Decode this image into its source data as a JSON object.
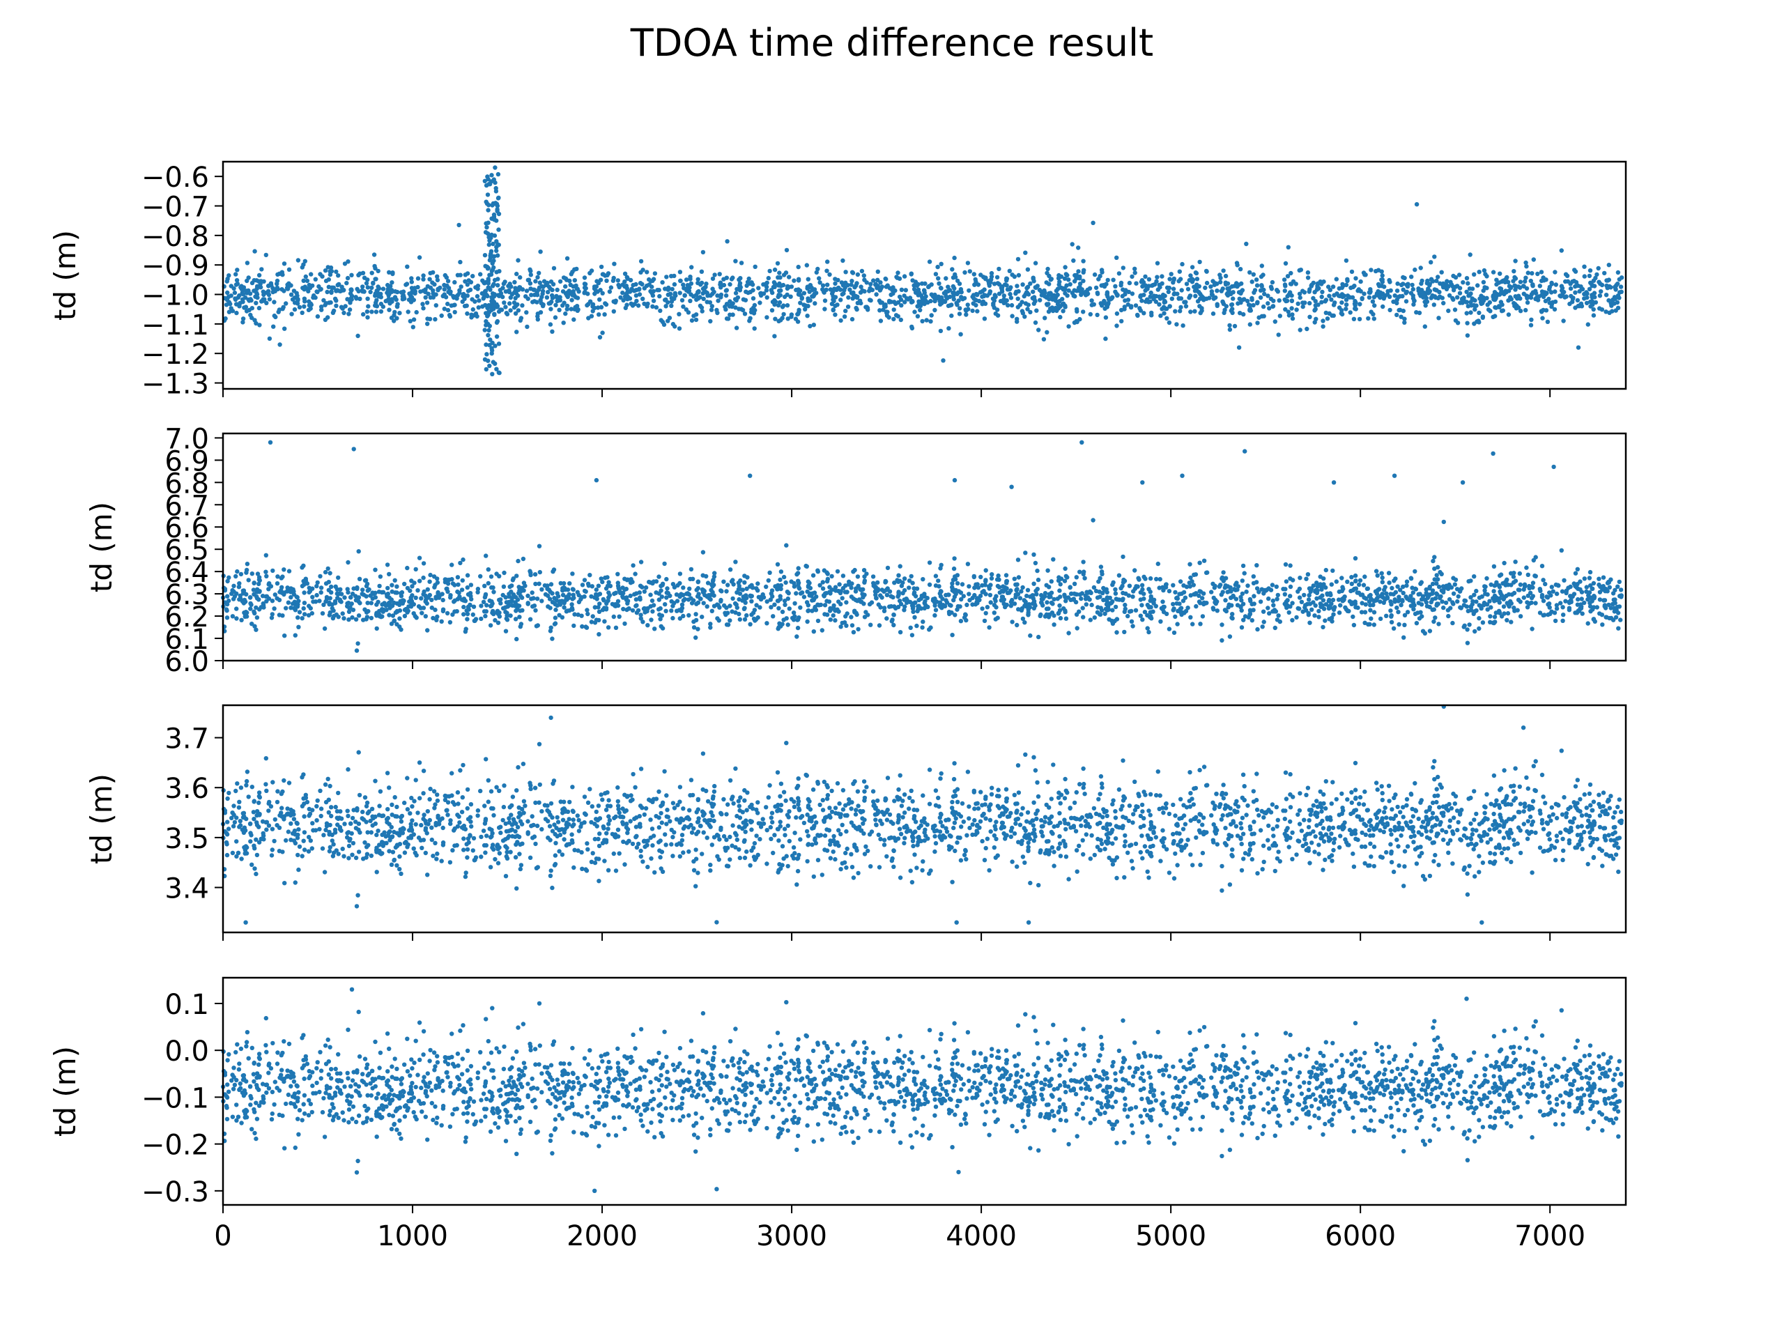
{
  "figure": {
    "title": "TDOA time difference result",
    "point_color": "#1f77b4"
  },
  "chart_data": [
    {
      "type": "scatter",
      "ylabel": "td (m)",
      "xlim": [
        0,
        7400
      ],
      "ylim": [
        -1.32,
        -0.55
      ],
      "yticks": [
        -0.6,
        -0.7,
        -0.8,
        -0.9,
        -1.0,
        -1.1,
        -1.2,
        -1.3
      ],
      "ytick_labels": [
        "−0.6",
        "−0.7",
        "−0.8",
        "−0.9",
        "−1.0",
        "−1.1",
        "−1.2",
        "−1.3"
      ],
      "x_range": [
        0,
        7380
      ],
      "baseline": -1.0,
      "spread": 0.045,
      "event": {
        "x_from": 1380,
        "x_to": 1460,
        "min": -1.27,
        "max": -0.57
      },
      "outliers": [
        [
          1435,
          -0.57
        ],
        [
          1440,
          -0.64
        ],
        [
          1448,
          -0.7
        ],
        [
          1442,
          -0.82
        ],
        [
          1420,
          -1.27
        ],
        [
          1418,
          -1.2
        ],
        [
          2660,
          -0.82
        ],
        [
          4480,
          -0.83
        ],
        [
          5620,
          -0.84
        ],
        [
          7150,
          -1.18
        ],
        [
          5360,
          -1.18
        ],
        [
          300,
          -1.17
        ]
      ]
    },
    {
      "type": "scatter",
      "ylabel": "td (m)",
      "xlim": [
        0,
        7400
      ],
      "ylim": [
        6.0,
        7.02
      ],
      "yticks": [
        6.0,
        6.1,
        6.2,
        6.3,
        6.4,
        6.5,
        6.6,
        6.7,
        6.8,
        6.9,
        7.0
      ],
      "ytick_labels": [
        "6.0",
        "6.1",
        "6.2",
        "6.3",
        "6.4",
        "6.5",
        "6.6",
        "6.7",
        "6.8",
        "6.9",
        "7.0"
      ],
      "x_range": [
        0,
        7380
      ],
      "baseline": 6.28,
      "spread": 0.065,
      "outliers": [
        [
          250,
          6.98
        ],
        [
          690,
          6.95
        ],
        [
          1970,
          6.81
        ],
        [
          2780,
          6.83
        ],
        [
          3860,
          6.81
        ],
        [
          4160,
          6.78
        ],
        [
          4530,
          6.98
        ],
        [
          4850,
          6.8
        ],
        [
          5390,
          6.94
        ],
        [
          6180,
          6.83
        ],
        [
          6700,
          6.93
        ],
        [
          7020,
          6.87
        ],
        [
          6540,
          6.8
        ],
        [
          5860,
          6.8
        ],
        [
          5060,
          6.83
        ]
      ]
    },
    {
      "type": "scatter",
      "ylabel": "td (m)",
      "xlim": [
        0,
        7400
      ],
      "ylim": [
        3.31,
        3.765
      ],
      "yticks": [
        3.4,
        3.5,
        3.6,
        3.7
      ],
      "ytick_labels": [
        "3.4",
        "3.5",
        "3.6",
        "3.7"
      ],
      "x_range": [
        0,
        7380
      ],
      "baseline": 3.525,
      "spread": 0.045,
      "outliers": [
        [
          1730,
          3.74
        ],
        [
          6860,
          3.72
        ],
        [
          120,
          3.33
        ],
        [
          3870,
          3.33
        ],
        [
          4250,
          3.33
        ],
        [
          6640,
          3.33
        ]
      ]
    },
    {
      "type": "scatter",
      "ylabel": "td (m)",
      "xlabel": "",
      "xlim": [
        0,
        7400
      ],
      "ylim": [
        -0.33,
        0.155
      ],
      "yticks": [
        0.1,
        0.0,
        -0.1,
        -0.2,
        -0.3
      ],
      "ytick_labels": [
        "0.1",
        "0.0",
        "−0.1",
        "−0.2",
        "−0.3"
      ],
      "xticks": [
        0,
        1000,
        2000,
        3000,
        4000,
        5000,
        6000,
        7000
      ],
      "xtick_labels": [
        "0",
        "1000",
        "2000",
        "3000",
        "4000",
        "5000",
        "6000",
        "7000"
      ],
      "x_range": [
        0,
        7380
      ],
      "baseline": -0.08,
      "spread": 0.05,
      "outliers": [
        [
          680,
          0.13
        ],
        [
          1960,
          -0.3
        ],
        [
          3880,
          -0.26
        ],
        [
          6560,
          0.11
        ],
        [
          1420,
          0.09
        ]
      ]
    }
  ]
}
